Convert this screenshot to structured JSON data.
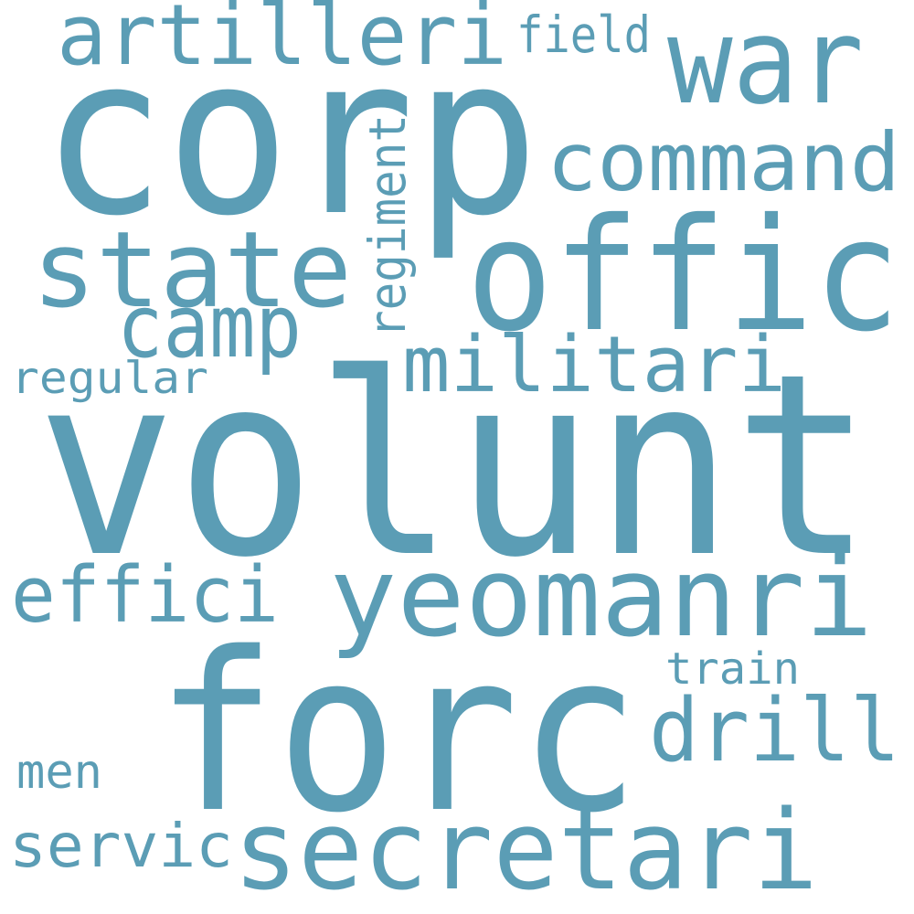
{
  "words": [
    "corp",
    "war",
    "artilleri",
    "field",
    "command",
    "state",
    "offic",
    "camp",
    "regiment",
    "militari",
    "regular",
    "volunt",
    "effici",
    "yeomanri",
    "train",
    "drill",
    "forc",
    "men",
    "servic",
    "secretari"
  ]
}
